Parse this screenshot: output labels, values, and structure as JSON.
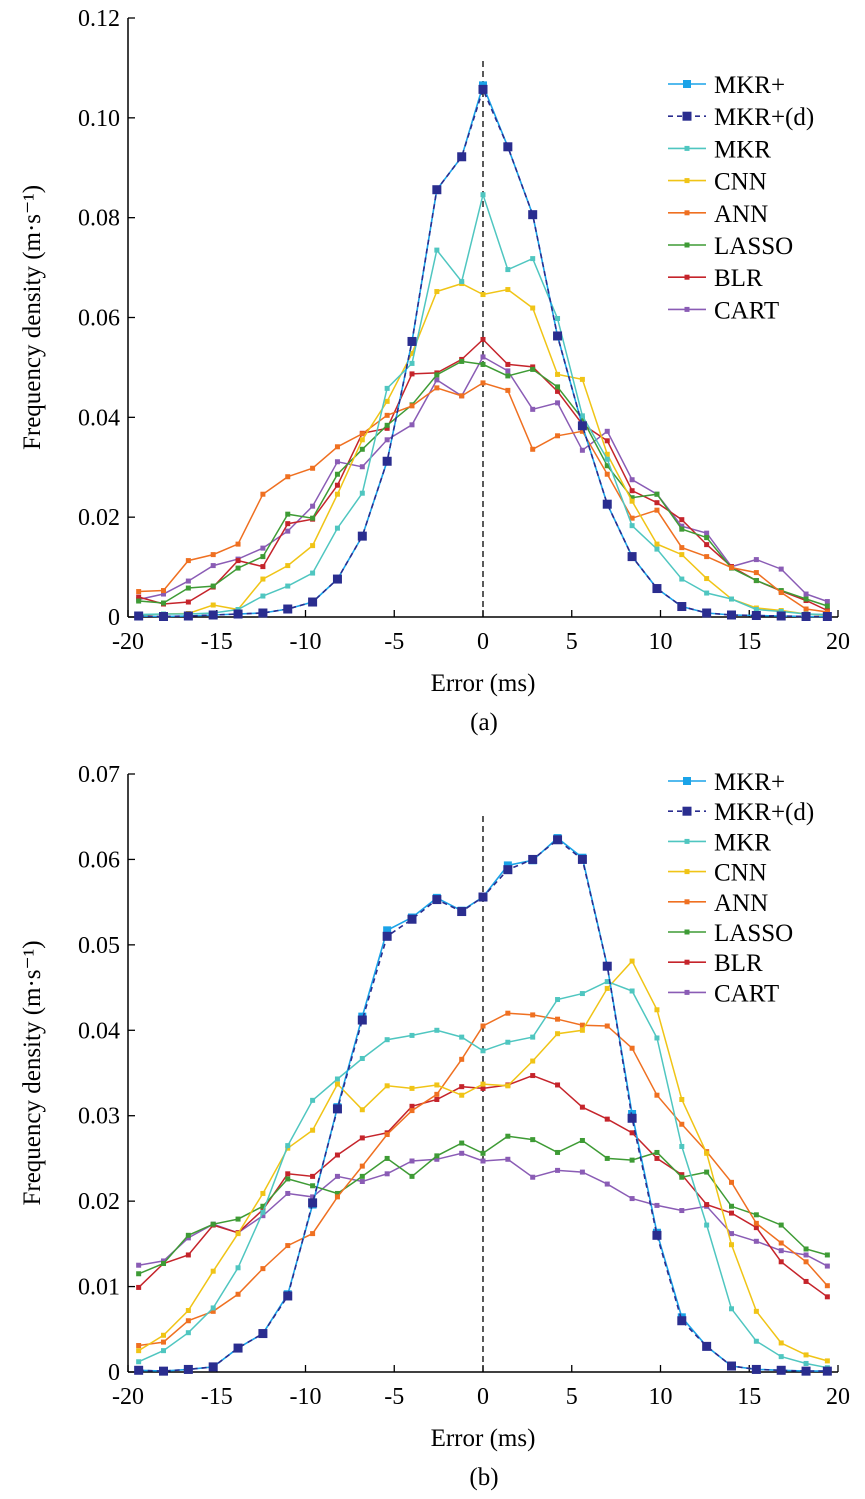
{
  "chart_data": [
    {
      "type": "line",
      "caption": "(a)",
      "xlabel": "Error (ms)",
      "ylabel": "Frequency density (m·s⁻¹)",
      "xlim": [
        -20,
        20
      ],
      "ylim": [
        0,
        0.12
      ],
      "xticks": [
        -20,
        -15,
        -10,
        -5,
        0,
        5,
        10,
        15,
        20
      ],
      "xtick_labels": [
        "-20",
        "-15",
        "-10",
        "-5",
        "0",
        "5",
        "10",
        "15",
        "20"
      ],
      "yticks": [
        0,
        0.02,
        0.04,
        0.06,
        0.08,
        0.1,
        0.12
      ],
      "ytick_labels": [
        "0",
        "0.02",
        "0.04",
        "0.06",
        "0.08",
        "0.10",
        "0.12"
      ],
      "reference_line_x": 0,
      "legend_position": "top-right",
      "x": [
        -19.4,
        -18,
        -16.6,
        -15.2,
        -13.8,
        -12.4,
        -11,
        -9.6,
        -8.2,
        -6.8,
        -5.4,
        -4,
        -2.6,
        -1.2,
        0,
        1.4,
        2.8,
        4.2,
        5.6,
        7,
        8.4,
        9.8,
        11.2,
        12.6,
        14,
        15.4,
        16.8,
        18.2,
        19.4
      ],
      "series": [
        {
          "name": "MKR+",
          "color": "#1aa3e8",
          "dashed": false,
          "values": [
            0.0002,
            0.0001,
            0.0002,
            0.0004,
            0.0006,
            0.0008,
            0.0016,
            0.003,
            0.0076,
            0.0162,
            0.0312,
            0.0552,
            0.0856,
            0.0922,
            0.1065,
            0.0942,
            0.0806,
            0.0563,
            0.0383,
            0.0226,
            0.0121,
            0.0057,
            0.0021,
            0.0008,
            0.0004,
            0.0003,
            0.0002,
            0.0001,
            0.0001
          ]
        },
        {
          "name": "MKR+(d)",
          "color": "#2a2d8f",
          "dashed": true,
          "values": [
            0.0002,
            0.0001,
            0.0002,
            0.0004,
            0.0006,
            0.0008,
            0.0016,
            0.003,
            0.0076,
            0.0162,
            0.0312,
            0.0552,
            0.0856,
            0.0922,
            0.1057,
            0.0942,
            0.0806,
            0.0563,
            0.0383,
            0.0226,
            0.0121,
            0.0057,
            0.0021,
            0.0008,
            0.0004,
            0.0003,
            0.0002,
            0.0001,
            0.0001
          ]
        },
        {
          "name": "MKR",
          "color": "#4fc6c0",
          "dashed": false,
          "values": [
            0.0005,
            0.0006,
            0.0006,
            0.0008,
            0.0015,
            0.0042,
            0.0062,
            0.0088,
            0.0178,
            0.0248,
            0.0458,
            0.0508,
            0.0735,
            0.0672,
            0.0846,
            0.0696,
            0.0718,
            0.0598,
            0.0403,
            0.0316,
            0.0183,
            0.0136,
            0.0076,
            0.0048,
            0.0036,
            0.0015,
            0.0011,
            0.0006,
            0.0005
          ]
        },
        {
          "name": "CNN",
          "color": "#f0c416",
          "dashed": false,
          "values": [
            0.0004,
            0.0006,
            0.0007,
            0.0024,
            0.0015,
            0.0076,
            0.0103,
            0.0143,
            0.0246,
            0.0355,
            0.0432,
            0.0528,
            0.0652,
            0.0668,
            0.0646,
            0.0656,
            0.0619,
            0.0486,
            0.0476,
            0.0326,
            0.0232,
            0.0146,
            0.0125,
            0.0077,
            0.0036,
            0.0018,
            0.0013,
            0.0006,
            0.0004
          ]
        },
        {
          "name": "ANN",
          "color": "#ef7021",
          "dashed": false,
          "values": [
            0.0051,
            0.0053,
            0.0113,
            0.0125,
            0.0146,
            0.0246,
            0.0281,
            0.0298,
            0.0341,
            0.0367,
            0.0404,
            0.0423,
            0.0459,
            0.0443,
            0.0469,
            0.0454,
            0.0336,
            0.0363,
            0.0372,
            0.0286,
            0.0198,
            0.0214,
            0.0139,
            0.0121,
            0.0099,
            0.0089,
            0.0049,
            0.0016,
            0.001
          ]
        },
        {
          "name": "LASSO",
          "color": "#3e9b35",
          "dashed": false,
          "values": [
            0.0032,
            0.0028,
            0.0058,
            0.0062,
            0.0098,
            0.0121,
            0.0206,
            0.0198,
            0.0286,
            0.0336,
            0.0384,
            0.0425,
            0.0485,
            0.0512,
            0.0506,
            0.0483,
            0.0496,
            0.0461,
            0.0397,
            0.0303,
            0.0239,
            0.0246,
            0.0176,
            0.0159,
            0.0098,
            0.0073,
            0.0053,
            0.0036,
            0.0022
          ]
        },
        {
          "name": "BLR",
          "color": "#c5242b",
          "dashed": false,
          "values": [
            0.004,
            0.0026,
            0.003,
            0.006,
            0.0113,
            0.0101,
            0.0187,
            0.0196,
            0.0264,
            0.0368,
            0.0378,
            0.0487,
            0.0489,
            0.0516,
            0.0556,
            0.0506,
            0.0501,
            0.0452,
            0.0386,
            0.0353,
            0.0253,
            0.0229,
            0.0195,
            0.0145,
            0.0101,
            0.0073,
            0.0052,
            0.0033,
            0.0013
          ]
        },
        {
          "name": "CART",
          "color": "#8a5cb5",
          "dashed": false,
          "values": [
            0.0035,
            0.0046,
            0.0072,
            0.0103,
            0.0116,
            0.0138,
            0.0172,
            0.0222,
            0.0311,
            0.0301,
            0.0355,
            0.0385,
            0.0475,
            0.0443,
            0.0521,
            0.0493,
            0.0416,
            0.0429,
            0.0334,
            0.0372,
            0.0275,
            0.0246,
            0.0182,
            0.0168,
            0.0101,
            0.0115,
            0.0096,
            0.0046,
            0.0031
          ]
        }
      ]
    },
    {
      "type": "line",
      "caption": "(b)",
      "xlabel": "Error (ms)",
      "ylabel": "Frequency density (m·s⁻¹)",
      "xlim": [
        -20,
        20
      ],
      "ylim": [
        0,
        0.07
      ],
      "xticks": [
        -20,
        -15,
        -10,
        -5,
        0,
        5,
        10,
        15,
        20
      ],
      "xtick_labels": [
        "-20",
        "-15",
        "-10",
        "-5",
        "0",
        "5",
        "10",
        "15",
        "20"
      ],
      "yticks": [
        0,
        0.01,
        0.02,
        0.03,
        0.04,
        0.05,
        0.06,
        0.07
      ],
      "ytick_labels": [
        "0",
        "0.01",
        "0.02",
        "0.03",
        "0.04",
        "0.05",
        "0.06",
        "0.07"
      ],
      "reference_line_x": 0,
      "legend_position": "top-right",
      "x": [
        -19.4,
        -18,
        -16.6,
        -15.2,
        -13.8,
        -12.4,
        -11,
        -9.6,
        -8.2,
        -6.8,
        -5.4,
        -4,
        -2.6,
        -1.2,
        0,
        1.4,
        2.8,
        4.2,
        5.6,
        7,
        8.4,
        9.8,
        11.2,
        12.6,
        14,
        15.4,
        16.8,
        18.2,
        19.4
      ],
      "series": [
        {
          "name": "MKR+",
          "color": "#1aa3e8",
          "dashed": false,
          "values": [
            0.0002,
            0.0001,
            0.0003,
            0.0006,
            0.0028,
            0.0045,
            0.0091,
            0.0196,
            0.031,
            0.0416,
            0.0517,
            0.0532,
            0.0555,
            0.054,
            0.0556,
            0.0593,
            0.0599,
            0.0625,
            0.0602,
            0.0475,
            0.0302,
            0.0163,
            0.0064,
            0.003,
            0.0007,
            0.0003,
            0.0002,
            0.0001,
            0.0001
          ]
        },
        {
          "name": "MKR+(d)",
          "color": "#2a2d8f",
          "dashed": true,
          "values": [
            0.0002,
            0.0001,
            0.0003,
            0.0006,
            0.0028,
            0.0045,
            0.0089,
            0.0198,
            0.0308,
            0.0412,
            0.051,
            0.053,
            0.0553,
            0.0539,
            0.0556,
            0.0588,
            0.06,
            0.0623,
            0.06,
            0.0475,
            0.0297,
            0.016,
            0.006,
            0.003,
            0.0007,
            0.0003,
            0.0002,
            0.0001,
            0.0001
          ]
        },
        {
          "name": "MKR",
          "color": "#4fc6c0",
          "dashed": false,
          "values": [
            0.0012,
            0.0025,
            0.0046,
            0.0075,
            0.0122,
            0.0187,
            0.0265,
            0.0318,
            0.0343,
            0.0367,
            0.0389,
            0.0394,
            0.04,
            0.0392,
            0.0376,
            0.0386,
            0.0392,
            0.0436,
            0.0443,
            0.0457,
            0.0446,
            0.0391,
            0.0264,
            0.0172,
            0.0074,
            0.0036,
            0.0018,
            0.001,
            0.0005
          ]
        },
        {
          "name": "CNN",
          "color": "#f0c416",
          "dashed": false,
          "values": [
            0.0025,
            0.0043,
            0.0072,
            0.0118,
            0.0162,
            0.0209,
            0.0262,
            0.0283,
            0.0337,
            0.0307,
            0.0335,
            0.0332,
            0.0336,
            0.0324,
            0.0337,
            0.0335,
            0.0364,
            0.0396,
            0.04,
            0.0449,
            0.0481,
            0.0424,
            0.0319,
            0.0256,
            0.0149,
            0.0071,
            0.0034,
            0.002,
            0.0013
          ]
        },
        {
          "name": "ANN",
          "color": "#ef7021",
          "dashed": false,
          "values": [
            0.0031,
            0.0035,
            0.006,
            0.0071,
            0.0091,
            0.0121,
            0.0148,
            0.0162,
            0.0205,
            0.0241,
            0.0278,
            0.0306,
            0.0325,
            0.0366,
            0.0405,
            0.042,
            0.0418,
            0.0413,
            0.0406,
            0.0405,
            0.0379,
            0.0324,
            0.029,
            0.0258,
            0.0222,
            0.0174,
            0.0151,
            0.0129,
            0.0101
          ]
        },
        {
          "name": "LASSO",
          "color": "#3e9b35",
          "dashed": false,
          "values": [
            0.0115,
            0.0127,
            0.016,
            0.0173,
            0.0179,
            0.0194,
            0.0226,
            0.0218,
            0.0209,
            0.0229,
            0.025,
            0.0229,
            0.0253,
            0.0268,
            0.0256,
            0.0276,
            0.0272,
            0.0257,
            0.0271,
            0.025,
            0.0248,
            0.0257,
            0.0228,
            0.0234,
            0.0194,
            0.0184,
            0.0172,
            0.0144,
            0.0137
          ]
        },
        {
          "name": "BLR",
          "color": "#c5242b",
          "dashed": false,
          "values": [
            0.0099,
            0.0127,
            0.0137,
            0.0172,
            0.0163,
            0.019,
            0.0232,
            0.0229,
            0.0254,
            0.0274,
            0.028,
            0.0311,
            0.0319,
            0.0334,
            0.0332,
            0.0336,
            0.0347,
            0.0336,
            0.031,
            0.0296,
            0.028,
            0.025,
            0.0231,
            0.0196,
            0.0186,
            0.0169,
            0.0129,
            0.0106,
            0.0088
          ]
        },
        {
          "name": "CART",
          "color": "#8a5cb5",
          "dashed": false,
          "values": [
            0.0125,
            0.013,
            0.0157,
            0.0173,
            0.0163,
            0.0183,
            0.0209,
            0.0205,
            0.0229,
            0.0223,
            0.0232,
            0.0247,
            0.0249,
            0.0256,
            0.0247,
            0.0249,
            0.0228,
            0.0236,
            0.0234,
            0.022,
            0.0203,
            0.0195,
            0.0189,
            0.0194,
            0.0162,
            0.0153,
            0.0142,
            0.0137,
            0.0124
          ]
        }
      ]
    }
  ]
}
